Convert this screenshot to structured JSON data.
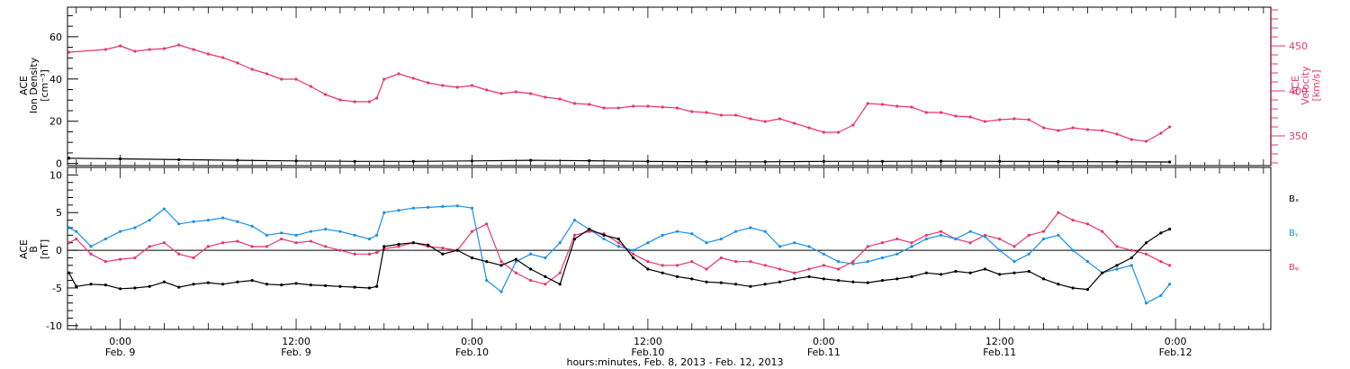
{
  "x_axis": {
    "title": "hours:minutes, Feb.  8, 2013 - Feb. 12, 2013",
    "ticks": [
      {
        "t": 0,
        "time": "0:00",
        "date": "Feb. 9"
      },
      {
        "t": 12,
        "time": "12:00",
        "date": "Feb. 9"
      },
      {
        "t": 24,
        "time": "0:00",
        "date": "Feb.10"
      },
      {
        "t": 36,
        "time": "12:00",
        "date": "Feb.10"
      },
      {
        "t": 48,
        "time": "0:00",
        "date": "Feb.11"
      },
      {
        "t": 60,
        "time": "12:00",
        "date": "Feb.11"
      },
      {
        "t": 72,
        "time": "0:00",
        "date": "Feb.12"
      }
    ],
    "range_hours": [
      -3.6,
      78.5
    ]
  },
  "colors": {
    "density": "#000000",
    "velocity": "#e8366a",
    "bx": "#000000",
    "by": "#1a8fe8",
    "bz": "#e8366a"
  },
  "chart_data": [
    {
      "type": "scatter",
      "panel": "top",
      "ylabel": [
        "ACE",
        "Ion Density",
        "[cm⁻³]"
      ],
      "ylim": [
        -1,
        74
      ],
      "yticks": [
        0,
        20,
        40,
        60
      ],
      "y2label": [
        "ACE",
        "Velocity",
        "[km/s]"
      ],
      "y2lim": [
        317,
        493
      ],
      "y2ticks": [
        350,
        400,
        450
      ],
      "series": [
        {
          "axis": "left",
          "x": [
            -3.5,
            0,
            4,
            8,
            12,
            16,
            20,
            24,
            28,
            32,
            36,
            40,
            44,
            48,
            52,
            56,
            60,
            64,
            68,
            71.6
          ],
          "values": [
            2.5,
            2.2,
            1.8,
            1.5,
            1.2,
            1.0,
            1.0,
            1.2,
            1.5,
            1.3,
            1.0,
            0.8,
            0.8,
            1.0,
            1.0,
            1.1,
            1.0,
            0.9,
            0.8,
            0.7
          ]
        },
        {
          "axis": "right",
          "x": [
            -3.5,
            -1,
            0,
            1,
            2,
            3,
            4,
            5,
            6,
            7,
            8,
            9,
            10,
            11,
            12,
            13,
            14,
            15,
            16,
            17,
            17.5,
            18,
            19,
            20,
            21,
            22,
            23,
            24,
            25,
            26,
            27,
            28,
            29,
            30,
            31,
            32,
            33,
            34,
            35,
            36,
            37,
            38,
            39,
            40,
            41,
            42,
            43,
            44,
            45,
            46,
            47,
            48,
            49,
            50,
            51,
            52,
            53,
            54,
            55,
            56,
            57,
            58,
            59,
            60,
            61,
            62,
            63,
            64,
            65,
            66,
            67,
            68,
            69,
            70,
            71,
            71.6
          ],
          "values": [
            443,
            446,
            450,
            444,
            446,
            447,
            451,
            446,
            441,
            437,
            431,
            424,
            419,
            413,
            413,
            405,
            396,
            390,
            388,
            388,
            392,
            413,
            419,
            414,
            409,
            406,
            404,
            406,
            401,
            397,
            399,
            397,
            393,
            391,
            386,
            385,
            381,
            381,
            383,
            383,
            382,
            381,
            377,
            376,
            373,
            373,
            369,
            366,
            369,
            364,
            359,
            354,
            354,
            362,
            386,
            385,
            383,
            382,
            376,
            376,
            372,
            371,
            366,
            368,
            369,
            368,
            359,
            356,
            359,
            357,
            356,
            352,
            346,
            344,
            353,
            360
          ]
        }
      ]
    },
    {
      "type": "scatter",
      "panel": "bottom",
      "ylabel": [
        "ACE",
        "B",
        "[nT]"
      ],
      "ylim": [
        -10.5,
        11
      ],
      "yticks": [
        -10,
        -5,
        0,
        5,
        10
      ],
      "legend_position": "right",
      "series": [
        {
          "name": "Bₓ",
          "x": [
            -3.5,
            -3,
            -2,
            -1,
            0,
            1,
            2,
            3,
            4,
            5,
            6,
            7,
            8,
            9,
            10,
            11,
            12,
            13,
            14,
            15,
            16,
            17,
            17.5,
            18,
            19,
            20,
            21,
            22,
            23,
            24,
            25,
            26,
            27,
            28,
            29,
            30,
            31,
            32,
            33,
            34,
            35,
            36,
            37,
            38,
            39,
            40,
            41,
            42,
            43,
            44,
            45,
            46,
            47,
            48,
            49,
            50,
            51,
            52,
            53,
            54,
            55,
            56,
            57,
            58,
            59,
            60,
            61,
            62,
            63,
            64,
            65,
            66,
            67,
            68,
            69,
            70,
            71,
            71.6
          ],
          "values": [
            -3.0,
            -4.8,
            -4.5,
            -4.6,
            -5.1,
            -5.0,
            -4.8,
            -4.2,
            -4.9,
            -4.5,
            -4.3,
            -4.5,
            -4.2,
            -4.0,
            -4.5,
            -4.6,
            -4.4,
            -4.6,
            -4.7,
            -4.8,
            -4.9,
            -5.0,
            -4.8,
            0.5,
            0.8,
            1.0,
            0.7,
            -0.5,
            0.0,
            -1.0,
            -1.5,
            -2.0,
            -1.2,
            -2.5,
            -3.5,
            -4.5,
            1.5,
            2.8,
            2.0,
            1.5,
            -1.0,
            -2.5,
            -3.0,
            -3.5,
            -3.8,
            -4.2,
            -4.3,
            -4.5,
            -4.8,
            -4.5,
            -4.2,
            -3.8,
            -3.5,
            -3.8,
            -4.0,
            -4.2,
            -4.3,
            -4.0,
            -3.8,
            -3.5,
            -3.0,
            -3.2,
            -2.8,
            -3.0,
            -2.5,
            -3.2,
            -3.0,
            -2.8,
            -3.8,
            -4.5,
            -5.0,
            -5.2,
            -3.0,
            -2.0,
            -1.0,
            1.0,
            2.3,
            2.8
          ]
        },
        {
          "name": "Bᵧ",
          "x": [
            -3.5,
            -3,
            -2,
            -1,
            0,
            1,
            2,
            3,
            4,
            5,
            6,
            7,
            8,
            9,
            10,
            11,
            12,
            13,
            14,
            15,
            16,
            17,
            17.5,
            18,
            19,
            20,
            21,
            22,
            23,
            24,
            25,
            26,
            27,
            28,
            29,
            30,
            31,
            32,
            33,
            34,
            35,
            36,
            37,
            38,
            39,
            40,
            41,
            42,
            43,
            44,
            45,
            46,
            47,
            48,
            49,
            50,
            51,
            52,
            53,
            54,
            55,
            56,
            57,
            58,
            59,
            60,
            61,
            62,
            63,
            64,
            65,
            66,
            67,
            68,
            69,
            70,
            71,
            71.6
          ],
          "values": [
            3.0,
            2.5,
            0.5,
            1.5,
            2.5,
            3.0,
            4.0,
            5.5,
            3.5,
            3.8,
            4.0,
            4.3,
            3.8,
            3.2,
            2.0,
            2.3,
            2.0,
            2.5,
            2.8,
            2.5,
            2.0,
            1.5,
            2.0,
            5.0,
            5.3,
            5.6,
            5.7,
            5.8,
            5.9,
            5.6,
            -4.0,
            -5.5,
            -1.5,
            -0.5,
            -1.0,
            1.0,
            4.0,
            2.8,
            1.5,
            0.5,
            0.0,
            1.0,
            2.0,
            2.5,
            2.2,
            1.0,
            1.5,
            2.5,
            3.0,
            2.5,
            0.5,
            1.0,
            0.5,
            -0.5,
            -1.5,
            -1.8,
            -1.5,
            -1.0,
            -0.5,
            0.5,
            1.5,
            2.0,
            1.5,
            2.5,
            1.8,
            0.0,
            -1.5,
            -0.5,
            1.5,
            2.0,
            0.0,
            -1.5,
            -3.0,
            -2.5,
            -2.0,
            -7.0,
            -6.0,
            -4.5
          ]
        },
        {
          "name": "Bᵩ",
          "x": [
            -3.5,
            -3,
            -2,
            -1,
            0,
            1,
            2,
            3,
            4,
            5,
            6,
            7,
            8,
            9,
            10,
            11,
            12,
            13,
            14,
            15,
            16,
            17,
            17.5,
            18,
            19,
            20,
            21,
            22,
            23,
            24,
            25,
            26,
            27,
            28,
            29,
            30,
            31,
            32,
            33,
            34,
            35,
            36,
            37,
            38,
            39,
            40,
            41,
            42,
            43,
            44,
            45,
            46,
            47,
            48,
            49,
            50,
            51,
            52,
            53,
            54,
            55,
            56,
            57,
            58,
            59,
            60,
            61,
            62,
            63,
            64,
            65,
            66,
            67,
            68,
            69,
            70,
            71,
            71.6
          ],
          "values": [
            1.0,
            1.5,
            -0.5,
            -1.5,
            -1.2,
            -1.0,
            0.5,
            1.0,
            -0.5,
            -1.0,
            0.5,
            1.0,
            1.2,
            0.5,
            0.5,
            1.5,
            1.0,
            1.2,
            0.5,
            0.0,
            -0.5,
            -0.5,
            -0.3,
            0.2,
            0.5,
            1.0,
            0.5,
            0.3,
            0.0,
            2.5,
            3.5,
            -1.5,
            -3.0,
            -4.0,
            -4.5,
            -3.0,
            2.0,
            2.5,
            2.2,
            1.0,
            -0.5,
            -1.5,
            -2.0,
            -2.0,
            -1.5,
            -2.5,
            -1.0,
            -1.5,
            -1.5,
            -2.0,
            -2.5,
            -3.0,
            -2.5,
            -2.0,
            -2.5,
            -1.5,
            0.5,
            1.0,
            1.5,
            1.0,
            2.0,
            2.5,
            1.5,
            1.0,
            2.0,
            1.5,
            0.5,
            2.0,
            2.5,
            5.0,
            4.0,
            3.5,
            2.5,
            0.5,
            0.0,
            -0.5,
            -1.5,
            -2.0
          ]
        }
      ]
    }
  ]
}
